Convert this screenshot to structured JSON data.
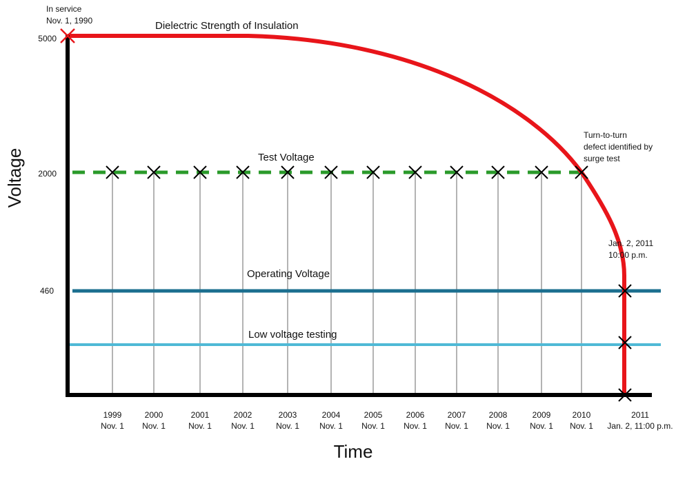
{
  "axes": {
    "y_label": "Voltage",
    "x_label": "Time",
    "y_ticks": [
      "5000",
      "2000",
      "460"
    ]
  },
  "annotations": {
    "start": [
      "In service",
      "Nov. 1, 1990"
    ],
    "curve": "Dielectric Strength of Insulation",
    "defect": [
      "Turn-to-turn",
      "defect identified by",
      "surge test"
    ],
    "failure": [
      "Jan. 2, 2011",
      "10:00 p.m."
    ]
  },
  "lines": {
    "test": "Test Voltage",
    "operating": "Operating Voltage",
    "low": "Low voltage testing"
  },
  "x_ticks": [
    [
      "1999",
      "Nov. 1"
    ],
    [
      "2000",
      "Nov. 1"
    ],
    [
      "2001",
      "Nov. 1"
    ],
    [
      "2002",
      "Nov. 1"
    ],
    [
      "2003",
      "Nov. 1"
    ],
    [
      "2004",
      "Nov. 1"
    ],
    [
      "2005",
      "Nov. 1"
    ],
    [
      "2006",
      "Nov. 1"
    ],
    [
      "2007",
      "Nov. 1"
    ],
    [
      "2008",
      "Nov. 1"
    ],
    [
      "2009",
      "Nov. 1"
    ],
    [
      "2010",
      "Nov. 1"
    ],
    [
      "2011",
      "Jan. 2, 11:00 p.m."
    ]
  ]
}
